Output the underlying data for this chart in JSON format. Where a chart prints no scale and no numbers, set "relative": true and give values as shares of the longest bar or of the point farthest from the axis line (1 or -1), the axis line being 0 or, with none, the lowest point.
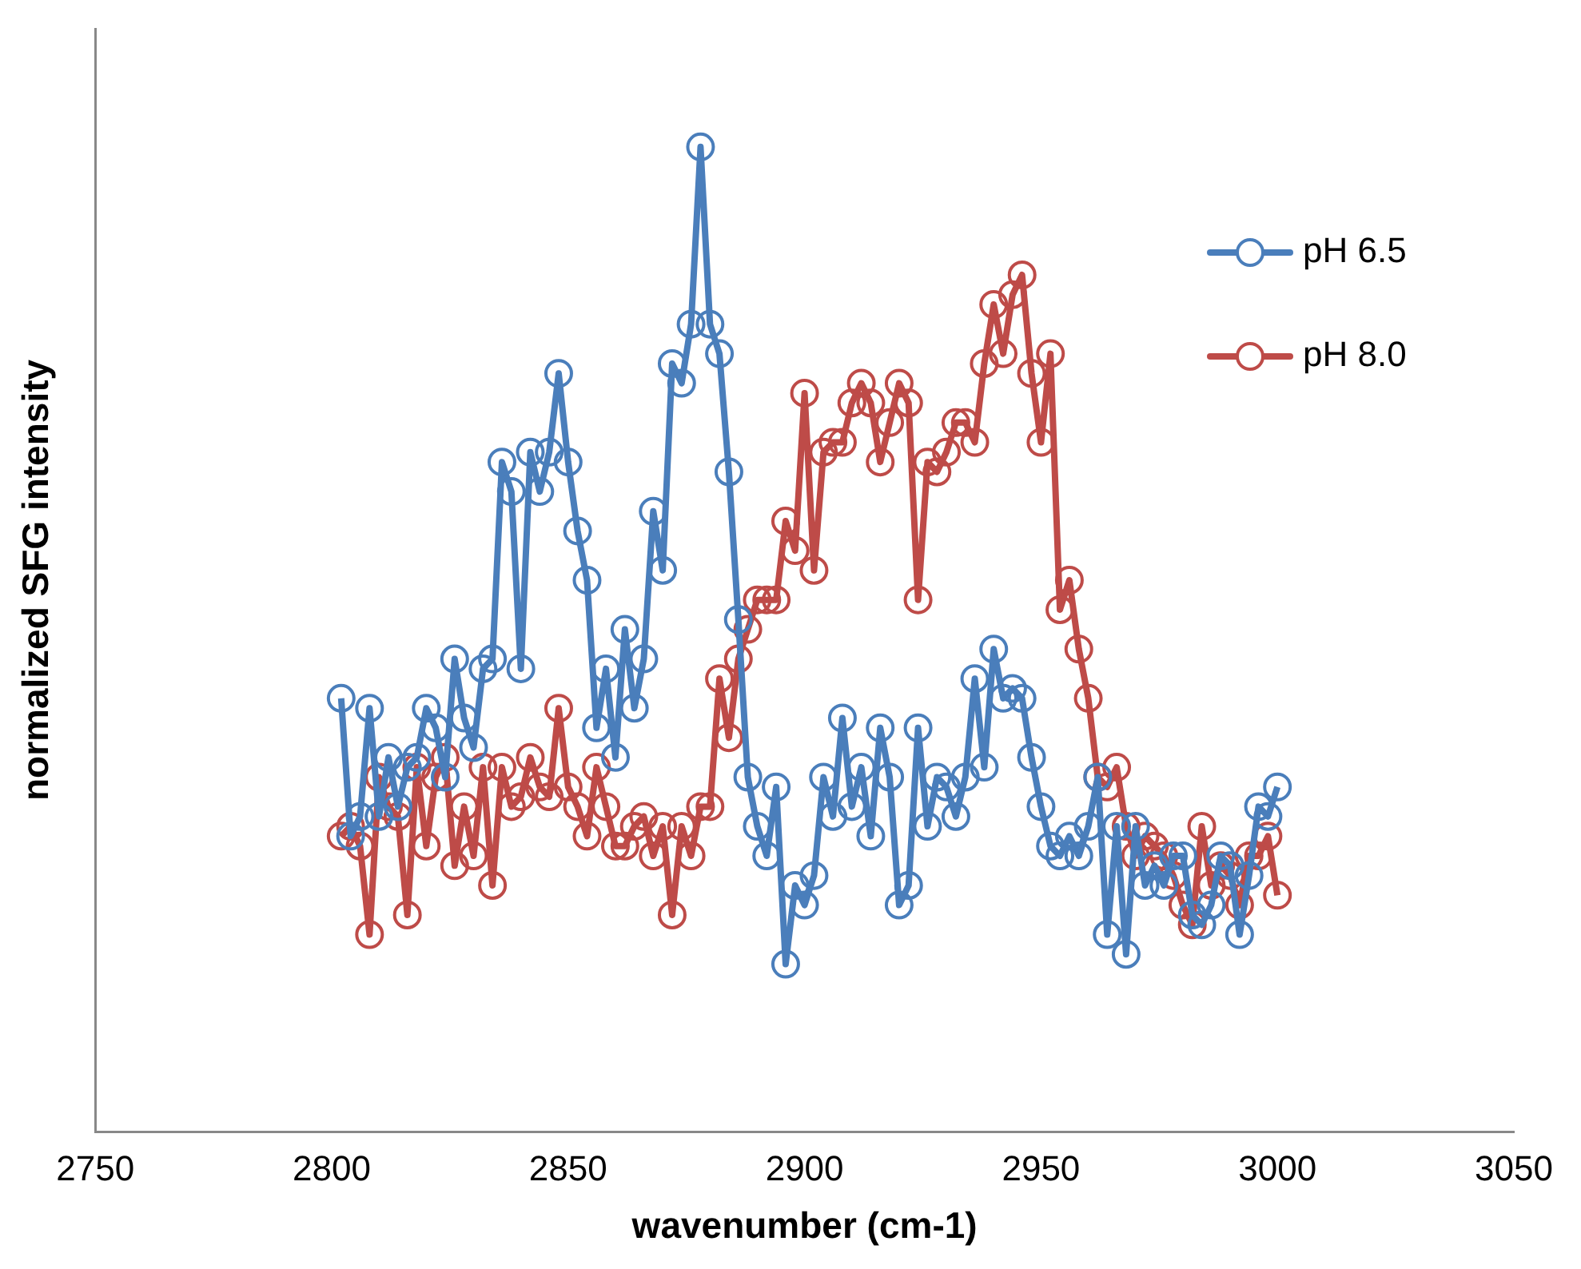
{
  "chart_data": {
    "type": "line",
    "xlabel": "wavenumber (cm-1)",
    "ylabel": "normalized SFG intensity",
    "relative": true,
    "xlim": [
      2750,
      3050
    ],
    "xticks": [
      2750,
      2800,
      2850,
      2900,
      2950,
      3000,
      3050
    ],
    "grid": false,
    "legend": "right",
    "marker": "circle",
    "line_style": "solid",
    "x": [
      2802,
      2804,
      2806,
      2808,
      2810,
      2812,
      2814,
      2816,
      2818,
      2820,
      2822,
      2824,
      2826,
      2828,
      2830,
      2832,
      2834,
      2836,
      2838,
      2840,
      2842,
      2844,
      2846,
      2848,
      2850,
      2852,
      2854,
      2856,
      2858,
      2860,
      2862,
      2864,
      2866,
      2868,
      2870,
      2872,
      2874,
      2876,
      2878,
      2880,
      2882,
      2884,
      2886,
      2888,
      2890,
      2892,
      2894,
      2896,
      2898,
      2900,
      2902,
      2904,
      2906,
      2908,
      2910,
      2912,
      2914,
      2916,
      2918,
      2920,
      2922,
      2924,
      2926,
      2928,
      2930,
      2932,
      2934,
      2936,
      2938,
      2940,
      2942,
      2944,
      2946,
      2948,
      2950,
      2952,
      2954,
      2956,
      2958,
      2960,
      2962,
      2964,
      2966,
      2968,
      2970,
      2972,
      2974,
      2976,
      2978,
      2980,
      2982,
      2984,
      2986,
      2988,
      2990,
      2992,
      2994,
      2996,
      2998,
      3000
    ],
    "series": [
      {
        "name": "pH 6.5",
        "color": "#4a7ebb",
        "values": [
          0.44,
          0.3,
          0.32,
          0.43,
          0.32,
          0.38,
          0.33,
          0.37,
          0.38,
          0.43,
          0.41,
          0.36,
          0.48,
          0.42,
          0.39,
          0.47,
          0.48,
          0.68,
          0.65,
          0.47,
          0.69,
          0.65,
          0.69,
          0.77,
          0.68,
          0.61,
          0.56,
          0.41,
          0.47,
          0.38,
          0.51,
          0.43,
          0.48,
          0.63,
          0.57,
          0.78,
          0.76,
          0.82,
          1,
          0.82,
          0.79,
          0.67,
          0.52,
          0.36,
          0.31,
          0.28,
          0.35,
          0.17,
          0.25,
          0.23,
          0.26,
          0.36,
          0.32,
          0.42,
          0.33,
          0.37,
          0.3,
          0.41,
          0.36,
          0.23,
          0.25,
          0.41,
          0.31,
          0.36,
          0.35,
          0.32,
          0.36,
          0.46,
          0.37,
          0.49,
          0.44,
          0.45,
          0.44,
          0.38,
          0.33,
          0.29,
          0.28,
          0.3,
          0.28,
          0.31,
          0.36,
          0.2,
          0.31,
          0.18,
          0.31,
          0.25,
          0.27,
          0.25,
          0.28,
          0.28,
          0.22,
          0.21,
          0.23,
          0.28,
          0.27,
          0.2,
          0.26,
          0.33,
          0.32,
          0.35
        ]
      },
      {
        "name": "pH 8.0",
        "color": "#be4b48",
        "values": [
          0.3,
          0.31,
          0.29,
          0.2,
          0.36,
          0.33,
          0.32,
          0.22,
          0.37,
          0.29,
          0.36,
          0.38,
          0.27,
          0.33,
          0.28,
          0.37,
          0.25,
          0.37,
          0.33,
          0.34,
          0.38,
          0.35,
          0.34,
          0.43,
          0.35,
          0.33,
          0.3,
          0.37,
          0.33,
          0.29,
          0.29,
          0.31,
          0.32,
          0.28,
          0.31,
          0.22,
          0.31,
          0.28,
          0.33,
          0.33,
          0.46,
          0.4,
          0.48,
          0.51,
          0.54,
          0.54,
          0.54,
          0.62,
          0.59,
          0.75,
          0.57,
          0.69,
          0.7,
          0.7,
          0.74,
          0.76,
          0.74,
          0.68,
          0.72,
          0.76,
          0.74,
          0.54,
          0.68,
          0.67,
          0.69,
          0.72,
          0.72,
          0.7,
          0.78,
          0.84,
          0.79,
          0.85,
          0.87,
          0.77,
          0.7,
          0.79,
          0.53,
          0.56,
          0.49,
          0.44,
          0.36,
          0.35,
          0.37,
          0.31,
          0.28,
          0.3,
          0.29,
          0.28,
          0.26,
          0.23,
          0.21,
          0.31,
          0.25,
          0.27,
          0.26,
          0.23,
          0.28,
          0.28,
          0.3,
          0.24
        ]
      }
    ]
  }
}
